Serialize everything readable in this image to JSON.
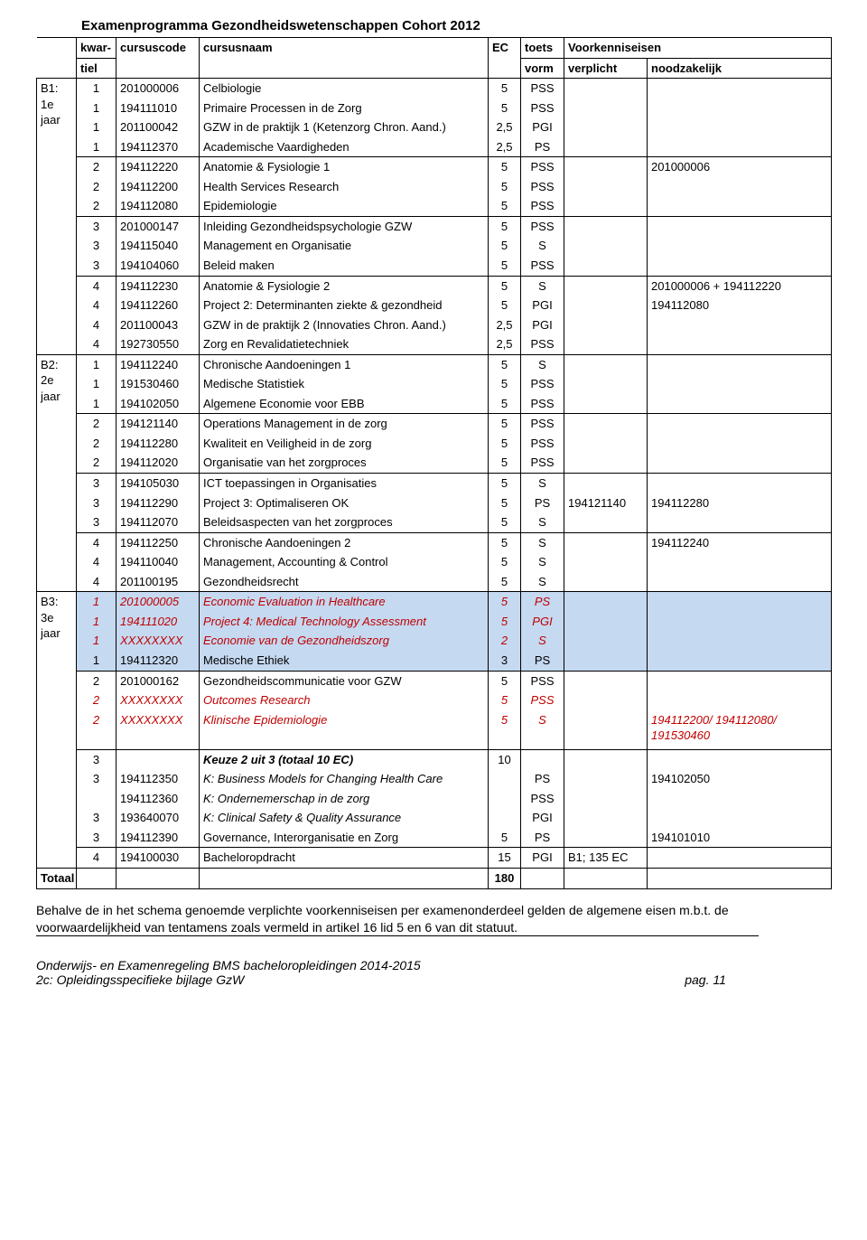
{
  "title": "Examenprogramma Gezondheidswetenschappen Cohort 2012",
  "headers": {
    "kwartiel1": "kwar-",
    "kwartiel2": "tiel",
    "cursuscode": "cursuscode",
    "cursusnaam": "cursusnaam",
    "ec": "EC",
    "toets1": "toets",
    "toets2": "vorm",
    "voorkennis": "Voorkenniseisen",
    "verplicht": "verplicht",
    "noodzakelijk": "noodzakelijk"
  },
  "years": {
    "b1": {
      "label1": "B1:",
      "label2": "1e",
      "label3": "jaar"
    },
    "b2": {
      "label1": "B2:",
      "label2": "2e",
      "label3": "jaar"
    },
    "b3": {
      "label1": "B3:",
      "label2": "3e",
      "label3": "jaar"
    }
  },
  "b1": {
    "g1": [
      {
        "kw": "1",
        "code": "201000006",
        "name": "Celbiologie",
        "ec": "5",
        "toets": "PSS",
        "verpl": "",
        "noodz": ""
      },
      {
        "kw": "1",
        "code": "194111010",
        "name": "Primaire Processen in de Zorg",
        "ec": "5",
        "toets": "PSS",
        "verpl": "",
        "noodz": ""
      },
      {
        "kw": "1",
        "code": "201100042",
        "name": "GZW in de praktijk 1 (Ketenzorg Chron. Aand.)",
        "ec": "2,5",
        "toets": "PGI",
        "verpl": "",
        "noodz": ""
      },
      {
        "kw": "1",
        "code": "194112370",
        "name": "Academische Vaardigheden",
        "ec": "2,5",
        "toets": "PS",
        "verpl": "",
        "noodz": ""
      }
    ],
    "g2": [
      {
        "kw": "2",
        "code": "194112220",
        "name": "Anatomie & Fysiologie 1",
        "ec": "5",
        "toets": "PSS",
        "verpl": "",
        "noodz": "201000006"
      },
      {
        "kw": "2",
        "code": "194112200",
        "name": "Health Services Research",
        "ec": "5",
        "toets": "PSS",
        "verpl": "",
        "noodz": ""
      },
      {
        "kw": "2",
        "code": "194112080",
        "name": "Epidemiologie",
        "ec": "5",
        "toets": "PSS",
        "verpl": "",
        "noodz": ""
      }
    ],
    "g3": [
      {
        "kw": "3",
        "code": "201000147",
        "name": "Inleiding Gezondheidspsychologie GZW",
        "ec": "5",
        "toets": "PSS",
        "verpl": "",
        "noodz": ""
      },
      {
        "kw": "3",
        "code": "194115040",
        "name": "Management en Organisatie",
        "ec": "5",
        "toets": "S",
        "verpl": "",
        "noodz": ""
      },
      {
        "kw": "3",
        "code": "194104060",
        "name": "Beleid maken",
        "ec": "5",
        "toets": "PSS",
        "verpl": "",
        "noodz": ""
      }
    ],
    "g4": [
      {
        "kw": "4",
        "code": "194112230",
        "name": "Anatomie & Fysiologie 2",
        "ec": "5",
        "toets": "S",
        "verpl": "",
        "noodz": "201000006 + 194112220"
      },
      {
        "kw": "4",
        "code": "194112260",
        "name": "Project 2: Determinanten ziekte & gezondheid",
        "ec": "5",
        "toets": "PGI",
        "verpl": "",
        "noodz": "194112080"
      },
      {
        "kw": "4",
        "code": "201100043",
        "name": "GZW in de praktijk 2 (Innovaties Chron. Aand.)",
        "ec": "2,5",
        "toets": "PGI",
        "verpl": "",
        "noodz": ""
      },
      {
        "kw": "4",
        "code": "192730550",
        "name": "Zorg en Revalidatietechniek",
        "ec": "2,5",
        "toets": "PSS",
        "verpl": "",
        "noodz": ""
      }
    ]
  },
  "b2": {
    "g1": [
      {
        "kw": "1",
        "code": "194112240",
        "name": "Chronische Aandoeningen 1",
        "ec": "5",
        "toets": "S",
        "verpl": "",
        "noodz": ""
      },
      {
        "kw": "1",
        "code": "191530460",
        "name": "Medische Statistiek",
        "ec": "5",
        "toets": "PSS",
        "verpl": "",
        "noodz": ""
      },
      {
        "kw": "1",
        "code": "194102050",
        "name": "Algemene Economie voor EBB",
        "ec": "5",
        "toets": "PSS",
        "verpl": "",
        "noodz": ""
      }
    ],
    "g2": [
      {
        "kw": "2",
        "code": "194121140",
        "name": "Operations Management in de zorg",
        "ec": "5",
        "toets": "PSS",
        "verpl": "",
        "noodz": ""
      },
      {
        "kw": "2",
        "code": "194112280",
        "name": "Kwaliteit en Veiligheid in de zorg",
        "ec": "5",
        "toets": "PSS",
        "verpl": "",
        "noodz": ""
      },
      {
        "kw": "2",
        "code": "194112020",
        "name": "Organisatie van het zorgproces",
        "ec": "5",
        "toets": "PSS",
        "verpl": "",
        "noodz": ""
      }
    ],
    "g3": [
      {
        "kw": "3",
        "code": "194105030",
        "name": "ICT toepassingen in Organisaties",
        "ec": "5",
        "toets": "S",
        "verpl": "",
        "noodz": ""
      },
      {
        "kw": "3",
        "code": "194112290",
        "name": "Project 3: Optimaliseren OK",
        "ec": "5",
        "toets": "PS",
        "verpl": "194121140",
        "noodz": "194112280"
      },
      {
        "kw": "3",
        "code": "194112070",
        "name": "Beleidsaspecten van het zorgproces",
        "ec": "5",
        "toets": "S",
        "verpl": "",
        "noodz": ""
      }
    ],
    "g4": [
      {
        "kw": "4",
        "code": "194112250",
        "name": "Chronische Aandoeningen 2",
        "ec": "5",
        "toets": "S",
        "verpl": "",
        "noodz": "194112240"
      },
      {
        "kw": "4",
        "code": "194110040",
        "name": "Management, Accounting & Control",
        "ec": "5",
        "toets": "S",
        "verpl": "",
        "noodz": ""
      },
      {
        "kw": "4",
        "code": "201100195",
        "name": "Gezondheidsrecht",
        "ec": "5",
        "toets": "S",
        "verpl": "",
        "noodz": ""
      }
    ]
  },
  "b3": {
    "g1": [
      {
        "kw": "1",
        "code": "201000005",
        "name": "Economic Evaluation in Healthcare",
        "ec": "5",
        "toets": "PS",
        "red": true
      },
      {
        "kw": "1",
        "code": "194111020",
        "name": "Project 4: Medical Technology Assessment",
        "ec": "5",
        "toets": "PGI",
        "red": true
      },
      {
        "kw": "1",
        "code": "XXXXXXXX",
        "name": "Economie van de Gezondheidszorg",
        "ec": "2",
        "toets": "S",
        "red": true
      },
      {
        "kw": "1",
        "code": "194112320",
        "name": "Medische Ethiek",
        "ec": "3",
        "toets": "PS",
        "red": false
      }
    ],
    "g2": [
      {
        "kw": "2",
        "code": "201000162",
        "name": "Gezondheidscommunicatie voor GZW",
        "ec": "5",
        "toets": "PSS",
        "verpl": "",
        "noodz": "",
        "red": false
      },
      {
        "kw": "2",
        "code": "XXXXXXXX",
        "name": "Outcomes Research",
        "ec": "5",
        "toets": "PSS",
        "verpl": "",
        "noodz": "",
        "red": true
      },
      {
        "kw": "2",
        "code": "XXXXXXXX",
        "name": "Klinische Epidemiologie",
        "ec": "5",
        "toets": "S",
        "verpl": "",
        "noodz": "194112200/ 194112080/ 191530460",
        "red": true,
        "noodz_red": true
      }
    ],
    "g3": [
      {
        "kw": "3",
        "code": "",
        "name": "Keuze 2 uit 3 (totaal 10 EC)",
        "ec": "10",
        "toets": "",
        "verpl": "",
        "noodz": "",
        "bolditalic": true
      },
      {
        "kw": "3",
        "code": "194112350",
        "name": "K: Business Models for Changing Health Care",
        "ec": "",
        "toets": "PS",
        "verpl": "",
        "noodz": "194102050",
        "italic": true
      },
      {
        "kw": "",
        "code": "194112360",
        "name": "K: Ondernemerschap in de zorg",
        "ec": "",
        "toets": "PSS",
        "verpl": "",
        "noodz": "",
        "italic": true
      },
      {
        "kw": "3",
        "code": "193640070",
        "name": "K: Clinical Safety & Quality Assurance",
        "ec": "",
        "toets": "PGI",
        "verpl": "",
        "noodz": "",
        "italic": true
      },
      {
        "kw": "3",
        "code": "194112390",
        "name": "Governance, Interorganisatie en Zorg",
        "ec": "5",
        "toets": "PS",
        "verpl": "",
        "noodz": "194101010"
      }
    ],
    "g4": [
      {
        "kw": "4",
        "code": "194100030",
        "name": "Bacheloropdracht",
        "ec": "15",
        "toets": "PGI",
        "verpl": "B1; 135 EC",
        "noodz": ""
      }
    ]
  },
  "totals": {
    "label": "Totaal",
    "value": "180"
  },
  "below": {
    "p1": "Behalve de in het schema genoemde verplichte voorkenniseisen per examenonderdeel gelden de algemene eisen m.b.t. de voorwaardelijkheid van tentamens zoals vermeld in artikel 16 lid 5 en 6 van dit statuut.",
    "footer_left": "Onderwijs- en Examenregeling BMS bacheloropleidingen 2014-2015",
    "footer_left2": "2c: Opleidingsspecifieke bijlage GzW",
    "footer_right": "pag. 11"
  },
  "colors": {
    "highlight_bg": "#c5d9f1",
    "red_text": "#c00000"
  }
}
